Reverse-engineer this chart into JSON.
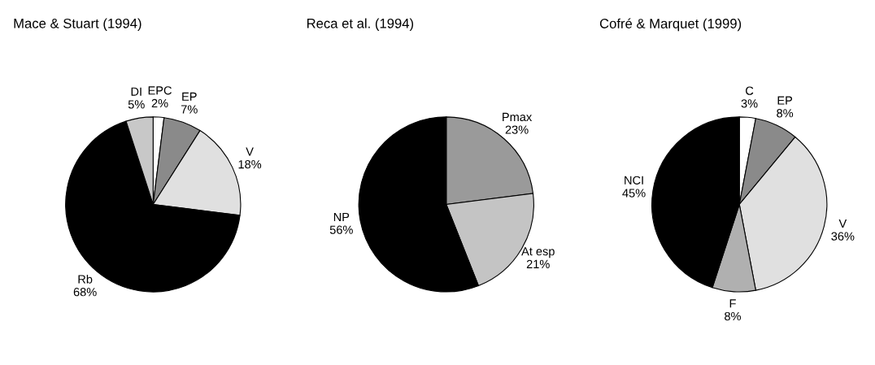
{
  "chart_data": [
    {
      "type": "pie",
      "title": "Mace & Stuart (1994)",
      "categories": [
        "EPC",
        "EP",
        "V",
        "Rb",
        "DI"
      ],
      "values": [
        2,
        7,
        18,
        68,
        5
      ],
      "colors": [
        "#ffffff",
        "#8a8a8a",
        "#e0e0e0",
        "#000000",
        "#c8c8c8"
      ],
      "value_labels": [
        "2%",
        "7%",
        "18%",
        "68%",
        "5%"
      ]
    },
    {
      "type": "pie",
      "title": "Reca et al. (1994)",
      "categories": [
        "Pmax",
        "At esp",
        "NP"
      ],
      "values": [
        23,
        21,
        56
      ],
      "colors": [
        "#9a9a9a",
        "#c4c4c4",
        "#000000"
      ],
      "value_labels": [
        "23%",
        "21%",
        "56%"
      ]
    },
    {
      "type": "pie",
      "title": "Cofré & Marquet (1999)",
      "categories": [
        "C",
        "EP",
        "V",
        "F",
        "NCI"
      ],
      "values": [
        3,
        8,
        36,
        8,
        45
      ],
      "colors": [
        "#ffffff",
        "#8a8a8a",
        "#e0e0e0",
        "#b0b0b0",
        "#000000"
      ],
      "value_labels": [
        "3%",
        "8%",
        "36%",
        "8%",
        "45%"
      ]
    }
  ]
}
